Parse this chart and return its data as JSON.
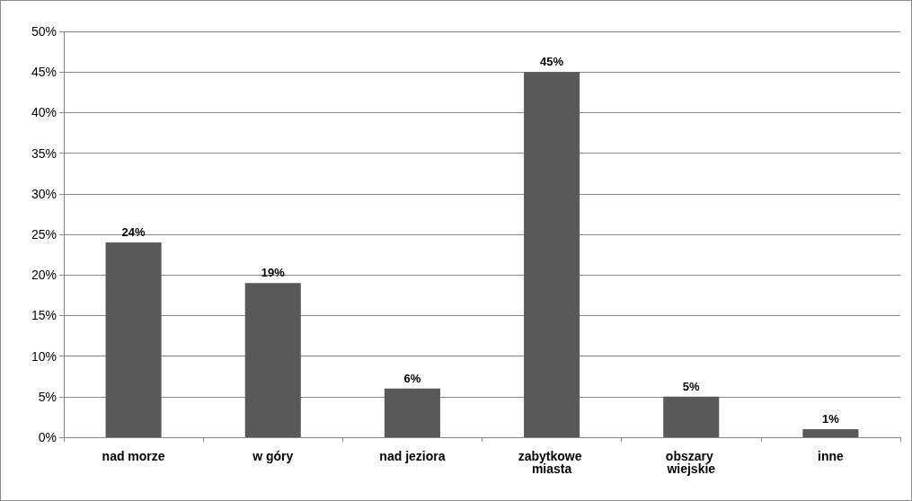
{
  "chart_data": {
    "type": "bar",
    "categories": [
      "nad morze",
      "w góry",
      "nad jeziora",
      "zabytkowe miasta",
      "obszary wiejskie",
      "inne"
    ],
    "values": [
      24,
      19,
      6,
      45,
      5,
      1
    ],
    "value_labels": [
      "24%",
      "19%",
      "6%",
      "45%",
      "5%",
      "1%"
    ],
    "color": "#595959",
    "ylim": [
      0,
      50
    ],
    "yticks": [
      {
        "value": 0,
        "label": "0%"
      },
      {
        "value": 5,
        "label": "5%"
      },
      {
        "value": 10,
        "label": "10%"
      },
      {
        "value": 15,
        "label": "15%"
      },
      {
        "value": 20,
        "label": "20%"
      },
      {
        "value": 25,
        "label": "25%"
      },
      {
        "value": 30,
        "label": "30%"
      },
      {
        "value": 35,
        "label": "35%"
      },
      {
        "value": 40,
        "label": "40%"
      },
      {
        "value": 45,
        "label": "45%"
      },
      {
        "value": 50,
        "label": "50%"
      }
    ],
    "grid": "y"
  }
}
